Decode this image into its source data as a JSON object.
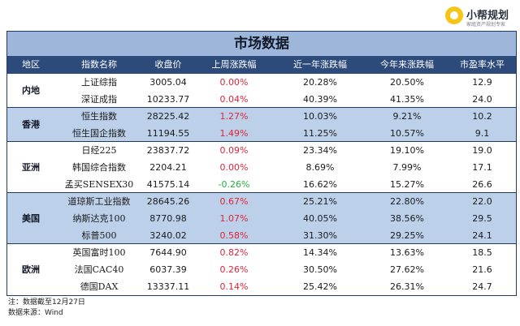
{
  "brand": {
    "name": "小帮规划",
    "slogan": "家庭资产规划专家"
  },
  "table": {
    "title": "市场数据",
    "headers": [
      "地区",
      "指数名称",
      "收盘价",
      "上周涨跌幅",
      "近一年涨跌幅",
      "今年来涨跌幅",
      "市盈率水平"
    ],
    "groups": [
      {
        "region": "内地",
        "rows": [
          {
            "name": "上证综指",
            "close": "3005.04",
            "week": "0.00%",
            "week_dir": "up",
            "year1": "20.28%",
            "ytd": "20.50%",
            "pe": "12.9"
          },
          {
            "name": "深证成指",
            "close": "10233.77",
            "week": "0.04%",
            "week_dir": "up",
            "year1": "40.39%",
            "ytd": "41.35%",
            "pe": "24.0"
          }
        ]
      },
      {
        "region": "香港",
        "rows": [
          {
            "name": "恒生指数",
            "close": "28225.42",
            "week": "1.27%",
            "week_dir": "up",
            "year1": "10.03%",
            "ytd": "9.21%",
            "pe": "10.2"
          },
          {
            "name": "恒生国企指数",
            "close": "11194.55",
            "week": "1.49%",
            "week_dir": "up",
            "year1": "11.25%",
            "ytd": "10.57%",
            "pe": "9.1"
          }
        ]
      },
      {
        "region": "亚洲",
        "rows": [
          {
            "name": "日经225",
            "close": "23837.72",
            "week": "0.09%",
            "week_dir": "up",
            "year1": "23.34%",
            "ytd": "19.10%",
            "pe": "19.0"
          },
          {
            "name": "韩国综合指数",
            "close": "2204.21",
            "week": "0.00%",
            "week_dir": "up",
            "year1": "8.69%",
            "ytd": "7.99%",
            "pe": "17.1"
          },
          {
            "name": "孟买SENSEX30",
            "close": "41575.14",
            "week": "-0.26%",
            "week_dir": "down",
            "year1": "16.62%",
            "ytd": "15.27%",
            "pe": "26.6"
          }
        ]
      },
      {
        "region": "美国",
        "rows": [
          {
            "name": "道琼斯工业指数",
            "close": "28645.26",
            "week": "0.67%",
            "week_dir": "up",
            "year1": "25.21%",
            "ytd": "22.80%",
            "pe": "22.0"
          },
          {
            "name": "纳斯达克100",
            "close": "8770.98",
            "week": "1.07%",
            "week_dir": "up",
            "year1": "40.05%",
            "ytd": "38.56%",
            "pe": "29.5"
          },
          {
            "name": "标普500",
            "close": "3240.02",
            "week": "0.58%",
            "week_dir": "up",
            "year1": "31.30%",
            "ytd": "29.25%",
            "pe": "24.1"
          }
        ]
      },
      {
        "region": "欧洲",
        "rows": [
          {
            "name": "英国富时100",
            "close": "7644.90",
            "week": "0.82%",
            "week_dir": "up",
            "year1": "14.34%",
            "ytd": "13.63%",
            "pe": "18.5"
          },
          {
            "name": "法国CAC40",
            "close": "6037.39",
            "week": "0.26%",
            "week_dir": "up",
            "year1": "30.50%",
            "ytd": "27.62%",
            "pe": "21.6"
          },
          {
            "name": "德国DAX",
            "close": "13337.11",
            "week": "0.14%",
            "week_dir": "up",
            "year1": "25.42%",
            "ytd": "26.31%",
            "pe": "24.7"
          }
        ]
      }
    ]
  },
  "notes": {
    "line1": "注：数据截至12月27日",
    "line2": "数据来源：Wind"
  },
  "colors": {
    "up": "#e0243a",
    "down": "#1fae3e",
    "header_bg": "#2c4a7a",
    "title_bg": "#9db6d9",
    "band_bg": "#bcd0ea"
  }
}
